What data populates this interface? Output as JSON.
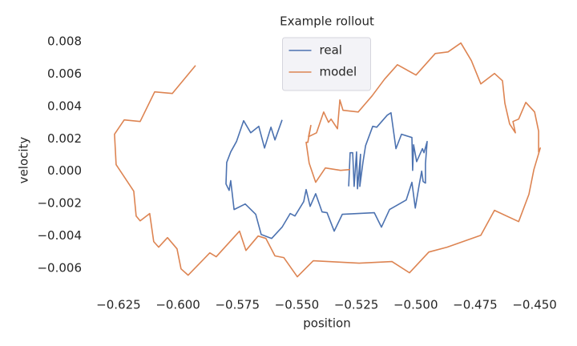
{
  "chart_data": {
    "type": "line",
    "title": "Example rollout",
    "x_label": "position",
    "y_label": "velocity",
    "xlim": [
      -0.628,
      -0.447
    ],
    "ylim": [
      -0.0065,
      0.0085
    ],
    "xticks": [
      {
        "value": -0.625,
        "label": "−0.625"
      },
      {
        "value": -0.6,
        "label": "−0.600"
      },
      {
        "value": -0.575,
        "label": "−0.575"
      },
      {
        "value": -0.55,
        "label": "−0.550"
      },
      {
        "value": -0.525,
        "label": "−0.525"
      },
      {
        "value": -0.5,
        "label": "−0.500"
      },
      {
        "value": -0.475,
        "label": "−0.475"
      },
      {
        "value": -0.45,
        "label": "−0.450"
      }
    ],
    "yticks": [
      {
        "value": -0.006,
        "label": "−0.006"
      },
      {
        "value": -0.004,
        "label": "−0.004"
      },
      {
        "value": -0.002,
        "label": "−0.002"
      },
      {
        "value": 0,
        "label": "0.000"
      },
      0.002,
      0.004,
      0.006,
      0.008
    ],
    "legend": "upper center",
    "grid": false,
    "series": [
      {
        "name": "real",
        "color": "#4c72b0",
        "x": [
          -0.5562,
          -0.5592,
          -0.5609,
          -0.5636,
          -0.566,
          -0.5694,
          -0.5724,
          -0.5754,
          -0.5778,
          -0.5795,
          -0.5798,
          -0.5785,
          -0.5778,
          -0.5764,
          -0.5717,
          -0.5673,
          -0.565,
          -0.5606,
          -0.5562,
          -0.5528,
          -0.5508,
          -0.5471,
          -0.5461,
          -0.5444,
          -0.5421,
          -0.5394,
          -0.5373,
          -0.5343,
          -0.5309,
          -0.5174,
          -0.5144,
          -0.511,
          -0.504,
          -0.5016,
          -0.5002,
          -0.4986,
          -0.4975,
          -0.4969,
          -0.4959,
          -0.4959,
          -0.4952,
          -0.4965,
          -0.4972,
          -0.4996,
          -0.5009,
          -0.5013,
          -0.5016,
          -0.506,
          -0.5083,
          -0.5104,
          -0.512,
          -0.5164,
          -0.5181,
          -0.5211,
          -0.5222,
          -0.5235,
          -0.5232,
          -0.5245,
          -0.5249,
          -0.5259,
          -0.5265,
          -0.5276,
          -0.5282
        ],
        "values": [
          0.00317,
          0.00193,
          0.00272,
          0.00143,
          0.00277,
          0.00237,
          0.00312,
          0.00183,
          0.00119,
          0.00054,
          -0.00079,
          -0.00119,
          -0.00059,
          -0.00237,
          -0.00203,
          -0.00267,
          -0.00391,
          -0.00416,
          -0.00346,
          -0.00262,
          -0.00277,
          -0.00188,
          -0.00114,
          -0.00218,
          -0.00139,
          -0.00252,
          -0.00257,
          -0.00371,
          -0.00267,
          -0.00257,
          -0.00346,
          -0.00237,
          -0.00178,
          -0.00069,
          -0.00228,
          -0.00089,
          0,
          -0.00064,
          -0.00074,
          0.00045,
          0.00183,
          0.00114,
          0.00139,
          0.00059,
          0.00163,
          5e-05,
          0.00208,
          0.00228,
          0.00139,
          0.00361,
          0.00346,
          0.00272,
          0.00277,
          0.00158,
          0.00054,
          -0.00094,
          0.00104,
          -0.00109,
          0.00119,
          -0.00094,
          0.00114,
          0.00114,
          -0.00094
        ]
      },
      {
        "name": "model",
        "color": "#dd8452",
        "x": [
          -0.5926,
          -0.6024,
          -0.6098,
          -0.6159,
          -0.6226,
          -0.6267,
          -0.626,
          -0.6186,
          -0.6176,
          -0.6159,
          -0.6119,
          -0.6102,
          -0.6081,
          -0.6044,
          -0.6004,
          -0.5987,
          -0.5957,
          -0.5866,
          -0.5839,
          -0.5741,
          -0.5714,
          -0.5663,
          -0.563,
          -0.5592,
          -0.5555,
          -0.5498,
          -0.5431,
          -0.5238,
          -0.51,
          -0.5026,
          -0.4945,
          -0.4868,
          -0.4726,
          -0.4669,
          -0.4567,
          -0.4524,
          -0.4503,
          -0.4476,
          -0.4483,
          -0.4483,
          -0.45,
          -0.4537,
          -0.4567,
          -0.4591,
          -0.4581,
          -0.4605,
          -0.4625,
          -0.4635,
          -0.4669,
          -0.4726,
          -0.4766,
          -0.481,
          -0.4864,
          -0.4918,
          -0.4999,
          -0.5077,
          -0.5131,
          -0.5184,
          -0.5242,
          -0.5306,
          -0.5319,
          -0.5329,
          -0.5356,
          -0.5367,
          -0.5387,
          -0.5417,
          -0.5451,
          -0.5441,
          -0.5454,
          -0.5461,
          -0.5448,
          -0.5421,
          -0.538,
          -0.5316,
          -0.5276
        ],
        "values": [
          0.00653,
          0.0048,
          0.0049,
          0.00307,
          0.00317,
          0.00228,
          0.0004,
          -0.00124,
          -0.00277,
          -0.00307,
          -0.00262,
          -0.00435,
          -0.0047,
          -0.00411,
          -0.0048,
          -0.00604,
          -0.00643,
          -0.00505,
          -0.00529,
          -0.00371,
          -0.0049,
          -0.00401,
          -0.00416,
          -0.00524,
          -0.00534,
          -0.00653,
          -0.00554,
          -0.00569,
          -0.00559,
          -0.00628,
          -0.005,
          -0.0047,
          -0.00396,
          -0.00242,
          -0.00312,
          -0.00143,
          0.0001,
          0.00143,
          0.00119,
          0.00247,
          0.00366,
          0.00425,
          0.00322,
          0.00307,
          0.00237,
          0.00292,
          0.0042,
          0.00559,
          0.00604,
          0.00539,
          0.00683,
          0.00792,
          0.00737,
          0.00727,
          0.00594,
          0.00658,
          0.00569,
          0.00465,
          0.00366,
          0.00376,
          0.0044,
          0.00262,
          0.00322,
          0.00302,
          0.00366,
          0.00237,
          0.00213,
          0.00282,
          0.00178,
          0.00178,
          0.00049,
          -0.00069,
          0.0002,
          5e-05,
          0.0001
        ]
      }
    ]
  }
}
